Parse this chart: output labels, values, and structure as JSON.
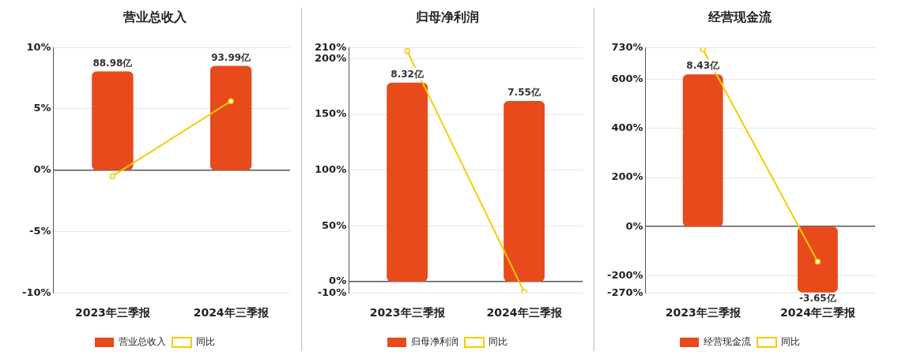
{
  "chart_data": [
    {
      "type": "bar",
      "title": "营业总收入",
      "categories": [
        "2023年三季报",
        "2024年三季报"
      ],
      "ylim": [
        -10,
        10
      ],
      "yticks": [
        {
          "value": -10,
          "label": "-10%"
        },
        {
          "value": -5,
          "label": "-5%"
        },
        {
          "value": 0,
          "label": "0%"
        },
        {
          "value": 5,
          "label": "5%"
        },
        {
          "value": 10,
          "label": "10%"
        }
      ],
      "grid": "y",
      "legend": "bottom",
      "marker": "circle",
      "series": [
        {
          "name": "营业总收入",
          "axis": "y2",
          "color": "#e84a1c",
          "values": [
            88.98,
            93.99
          ],
          "value_labels": [
            "88.98亿",
            "93.99亿"
          ]
        },
        {
          "name": "同比",
          "type": "line",
          "color": "#f5cc00",
          "values": [
            -0.48,
            5.63
          ]
        }
      ]
    },
    {
      "type": "bar",
      "title": "归母净利润",
      "categories": [
        "2023年三季报",
        "2024年三季报"
      ],
      "ylim": [
        -10,
        210
      ],
      "yticks": [
        {
          "value": -10,
          "label": "-10%"
        },
        {
          "value": 0,
          "label": "0%"
        },
        {
          "value": 50,
          "label": "50%"
        },
        {
          "value": 100,
          "label": "100%"
        },
        {
          "value": 150,
          "label": "150%"
        },
        {
          "value": 200,
          "label": "200%"
        },
        {
          "value": 210,
          "label": "210%"
        }
      ],
      "grid": "y",
      "legend": "bottom",
      "marker": "circle",
      "series": [
        {
          "name": "归母净利润",
          "axis": "y2",
          "color": "#e84a1c",
          "values": [
            8.32,
            7.55
          ],
          "value_labels": [
            "8.32亿",
            "7.55亿"
          ]
        },
        {
          "name": "同比",
          "type": "line",
          "color": "#f5cc00",
          "values": [
            206.7,
            -9.2
          ]
        }
      ]
    },
    {
      "type": "bar",
      "title": "经营现金流",
      "categories": [
        "2023年三季报",
        "2024年三季报"
      ],
      "ylim": [
        -270,
        730
      ],
      "yticks": [
        {
          "value": -270,
          "label": "-270%"
        },
        {
          "value": -200,
          "label": "-200%"
        },
        {
          "value": 0,
          "label": "0%"
        },
        {
          "value": 200,
          "label": "200%"
        },
        {
          "value": 400,
          "label": "400%"
        },
        {
          "value": 600,
          "label": "600%"
        },
        {
          "value": 730,
          "label": "730%"
        }
      ],
      "grid": "y",
      "legend": "bottom",
      "marker": "circle",
      "series": [
        {
          "name": "经营现金流",
          "axis": "y2",
          "color": "#e84a1c",
          "values": [
            8.43,
            -3.65
          ],
          "value_labels": [
            "8.43亿",
            "-3.65亿"
          ]
        },
        {
          "name": "同比",
          "type": "line",
          "color": "#f5cc00",
          "values": [
            722,
            -143
          ]
        }
      ]
    }
  ]
}
